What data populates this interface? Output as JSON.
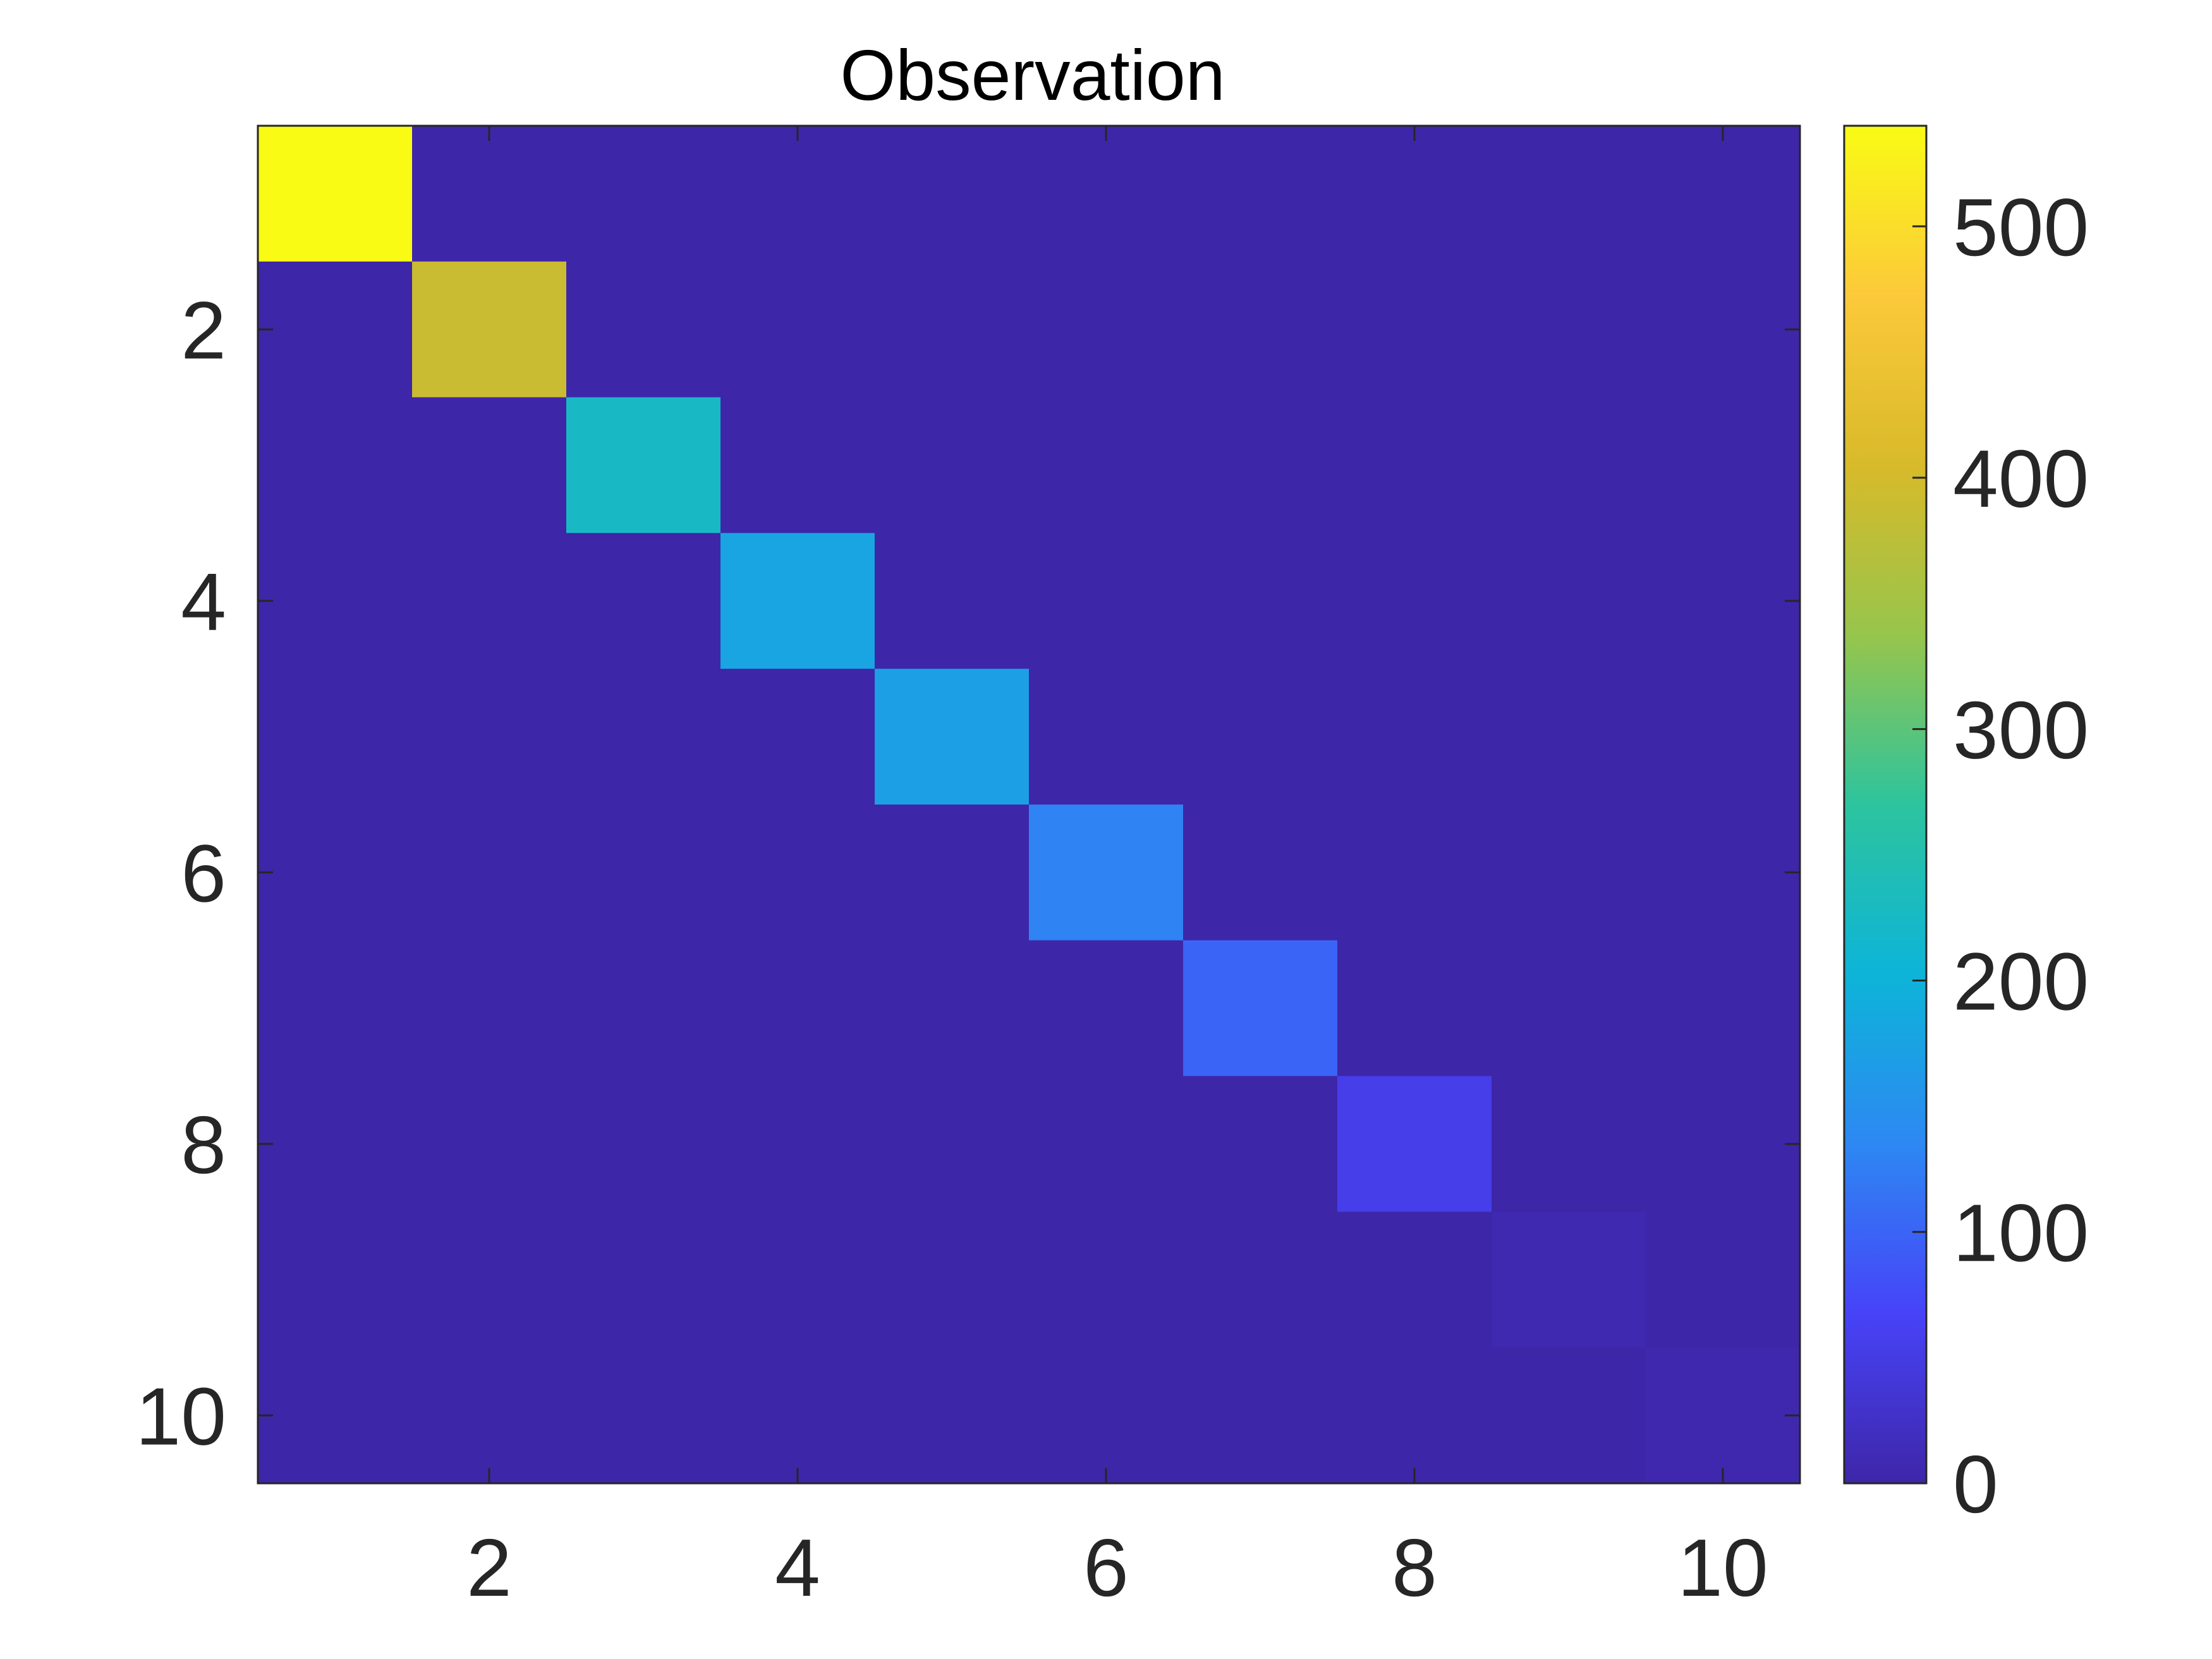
{
  "chart_data": {
    "type": "heatmap",
    "title": "Observation",
    "xlabel": "",
    "ylabel": "",
    "x_categories": [
      1,
      2,
      3,
      4,
      5,
      6,
      7,
      8,
      9,
      10
    ],
    "y_categories": [
      1,
      2,
      3,
      4,
      5,
      6,
      7,
      8,
      9,
      10
    ],
    "x_ticks": [
      2,
      4,
      6,
      8,
      10
    ],
    "y_ticks": [
      2,
      4,
      6,
      8,
      10
    ],
    "y_direction": "top-to-bottom",
    "values": [
      [
        540,
        0,
        0,
        0,
        0,
        0,
        0,
        0,
        0,
        0
      ],
      [
        0,
        390,
        0,
        0,
        0,
        0,
        0,
        0,
        0,
        0
      ],
      [
        0,
        0,
        225,
        0,
        0,
        0,
        0,
        0,
        0,
        0
      ],
      [
        0,
        0,
        0,
        180,
        0,
        0,
        0,
        0,
        0,
        0
      ],
      [
        0,
        0,
        0,
        0,
        170,
        0,
        0,
        0,
        0,
        0
      ],
      [
        0,
        0,
        0,
        0,
        0,
        130,
        0,
        0,
        0,
        0
      ],
      [
        0,
        0,
        0,
        0,
        0,
        0,
        100,
        0,
        0,
        0
      ],
      [
        0,
        0,
        0,
        0,
        0,
        0,
        0,
        55,
        0,
        0
      ],
      [
        0,
        0,
        0,
        0,
        0,
        0,
        0,
        0,
        8,
        0
      ],
      [
        0,
        0,
        0,
        0,
        0,
        0,
        0,
        0,
        0,
        4
      ]
    ],
    "colorbar": {
      "min": 0,
      "max": 540,
      "ticks": [
        0,
        100,
        200,
        300,
        400,
        500
      ],
      "colormap": "parula",
      "colormap_stops": [
        "#3e26a8",
        "#4743f8",
        "#2d88f3",
        "#0db4d8",
        "#2dc49e",
        "#97c54c",
        "#d8ba2a",
        "#fcc93a",
        "#f9fb15"
      ]
    },
    "grid": false,
    "legend": "none"
  },
  "colors": {
    "background": "#ffffff",
    "axis_line": "#262626",
    "tick_text": "#262626",
    "title_text": "#000000"
  }
}
